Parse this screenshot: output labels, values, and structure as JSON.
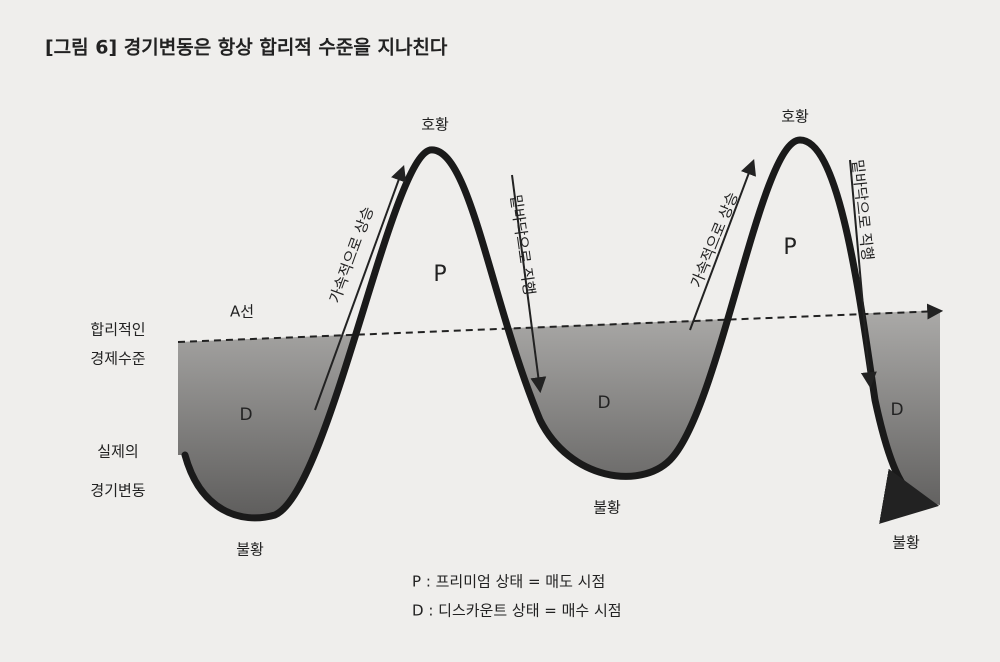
{
  "title": "[그림 6] 경기변동은 항상 합리적 수준을 지나친다",
  "reference_line": {
    "name": "A선",
    "label": [
      "합리적인",
      "경제수준"
    ]
  },
  "curve_label": [
    "실제의",
    "경기변동"
  ],
  "peaks": [
    {
      "label": "호황",
      "zone": "P",
      "rise": "가속적으로 상승",
      "fall": "밑바닥으로 직행"
    },
    {
      "label": "호황",
      "zone": "P",
      "rise": "가속적으로 상승",
      "fall": "밑바닥으로 직행"
    }
  ],
  "troughs": [
    {
      "label": "불황",
      "zone": "D"
    },
    {
      "label": "불황",
      "zone": "D"
    },
    {
      "label": "불황",
      "zone": "D"
    }
  ],
  "legend": [
    "P : 프리미엄 상태 = 매도 시점",
    "D : 디스카운트 상태 = 매수 시점"
  ]
}
